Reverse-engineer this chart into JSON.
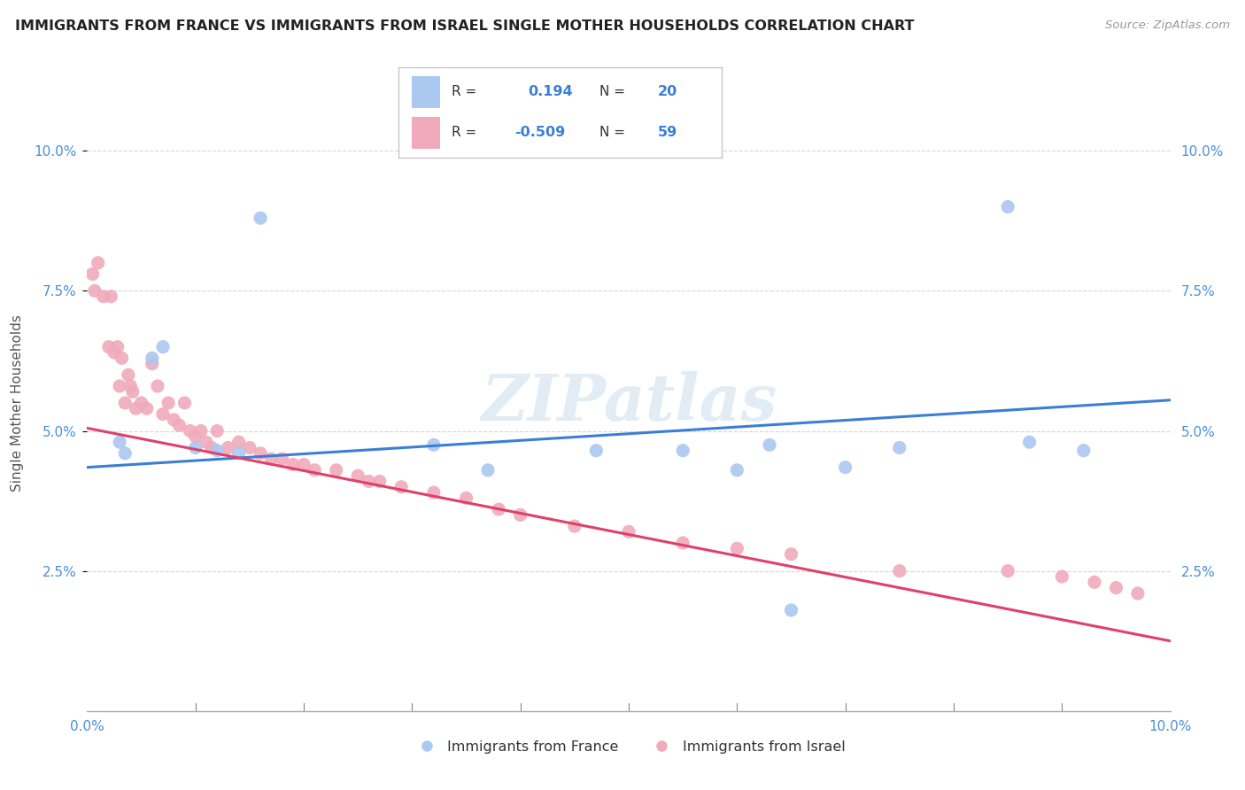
{
  "title": "IMMIGRANTS FROM FRANCE VS IMMIGRANTS FROM ISRAEL SINGLE MOTHER HOUSEHOLDS CORRELATION CHART",
  "source": "Source: ZipAtlas.com",
  "ylabel": "Single Mother Households",
  "r_france": 0.194,
  "n_france": 20,
  "r_israel": -0.509,
  "n_israel": 59,
  "france_color": "#aac8f0",
  "israel_color": "#f0aabb",
  "france_line_color": "#3a7fd5",
  "israel_line_color": "#e0406a",
  "background_color": "#ffffff",
  "grid_color": "#cccccc",
  "axis_label_color": "#4a90d9",
  "france_x": [
    0.3,
    0.35,
    0.6,
    0.7,
    1.0,
    1.2,
    1.4,
    1.6,
    3.2,
    3.7,
    4.7,
    5.5,
    6.0,
    6.3,
    6.5,
    7.0,
    7.5,
    8.5,
    8.7,
    9.2
  ],
  "france_y": [
    4.8,
    4.6,
    6.3,
    6.5,
    4.7,
    4.65,
    4.6,
    8.8,
    4.75,
    4.3,
    4.65,
    4.65,
    4.3,
    4.75,
    1.8,
    4.35,
    4.7,
    9.0,
    4.8,
    4.65
  ],
  "israel_x": [
    0.05,
    0.07,
    0.1,
    0.15,
    0.2,
    0.22,
    0.25,
    0.28,
    0.3,
    0.32,
    0.35,
    0.38,
    0.4,
    0.42,
    0.45,
    0.5,
    0.55,
    0.6,
    0.65,
    0.7,
    0.75,
    0.8,
    0.85,
    0.9,
    0.95,
    1.0,
    1.05,
    1.1,
    1.15,
    1.2,
    1.3,
    1.4,
    1.5,
    1.6,
    1.7,
    1.8,
    1.9,
    2.0,
    2.1,
    2.3,
    2.5,
    2.6,
    2.7,
    2.9,
    3.2,
    3.5,
    3.8,
    4.0,
    4.5,
    5.0,
    5.5,
    6.0,
    6.5,
    7.5,
    8.5,
    9.0,
    9.3,
    9.5,
    9.7
  ],
  "israel_y": [
    7.8,
    7.5,
    8.0,
    7.4,
    6.5,
    7.4,
    6.4,
    6.5,
    5.8,
    6.3,
    5.5,
    6.0,
    5.8,
    5.7,
    5.4,
    5.5,
    5.4,
    6.2,
    5.8,
    5.3,
    5.5,
    5.2,
    5.1,
    5.5,
    5.0,
    4.9,
    5.0,
    4.8,
    4.7,
    5.0,
    4.7,
    4.8,
    4.7,
    4.6,
    4.5,
    4.5,
    4.4,
    4.4,
    4.3,
    4.3,
    4.2,
    4.1,
    4.1,
    4.0,
    3.9,
    3.8,
    3.6,
    3.5,
    3.3,
    3.2,
    3.0,
    2.9,
    2.8,
    2.5,
    2.5,
    2.4,
    2.3,
    2.2,
    2.1
  ],
  "xlim": [
    0.0,
    10.0
  ],
  "ylim": [
    0.0,
    11.0
  ],
  "ytick_positions": [
    2.5,
    5.0,
    7.5,
    10.0
  ],
  "ytick_labels": [
    "2.5%",
    "5.0%",
    "7.5%",
    "10.0%"
  ],
  "watermark": "ZIPatlas",
  "marker_size": 120
}
